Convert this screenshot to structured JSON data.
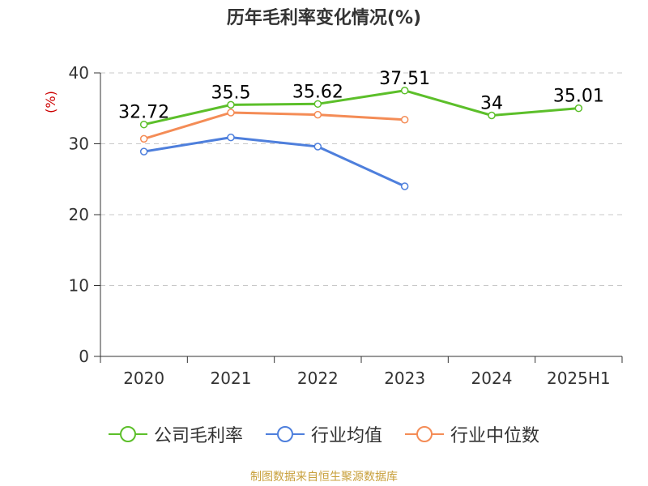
{
  "title": "历年毛利率变化情况(%)",
  "source": "制图数据来自恒生聚源数据库",
  "colors": {
    "company": "#5cbf2a",
    "industry_avg": "#4e7fdc",
    "industry_median": "#f48c56",
    "ylabel": "#cc0000",
    "grid": "#c8c8c8",
    "axis": "#333333",
    "text": "#333333"
  },
  "chart_data": {
    "type": "line",
    "title": "历年毛利率变化情况(%)",
    "xlabel": "",
    "ylabel": "(%)",
    "ylim": [
      0,
      40
    ],
    "yticks": [
      0,
      10,
      20,
      30,
      40
    ],
    "grid": true,
    "legend_position": "bottom",
    "categories": [
      "2020",
      "2021",
      "2022",
      "2023",
      "2024",
      "2025H1"
    ],
    "series": [
      {
        "name": "公司毛利率",
        "values": [
          32.72,
          35.5,
          35.62,
          37.51,
          34,
          35.01
        ],
        "labels": [
          "32.72",
          "35.5",
          "35.62",
          "37.51",
          "34",
          "35.01"
        ],
        "color_key": "company"
      },
      {
        "name": "行业均值",
        "values": [
          28.9,
          30.9,
          29.6,
          24.0,
          null,
          null
        ],
        "color_key": "industry_avg"
      },
      {
        "name": "行业中位数",
        "values": [
          30.7,
          34.4,
          34.1,
          33.4,
          null,
          null
        ],
        "color_key": "industry_median"
      }
    ]
  }
}
